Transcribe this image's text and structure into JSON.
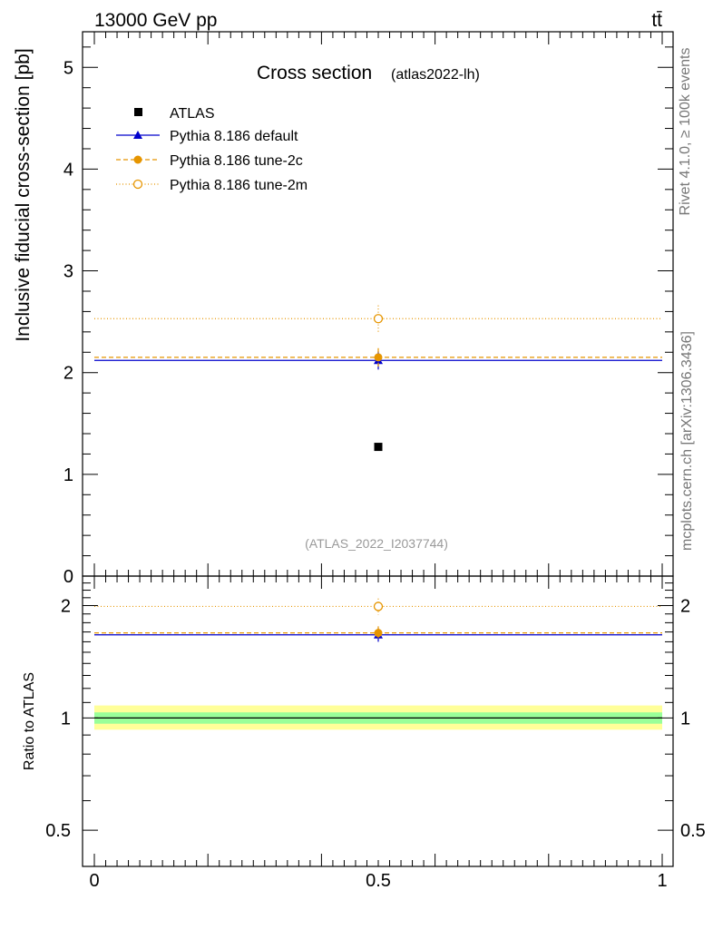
{
  "header": {
    "left_label": "13000 GeV pp",
    "right_label": "tt̄"
  },
  "side_labels": {
    "rivet": "Rivet 4.1.0, ≥ 100k events",
    "mcplots": "mcplots.cern.ch [arXiv:1306.3436]"
  },
  "chart_data": [
    {
      "type": "scatter",
      "panel": "main",
      "title": "Cross section",
      "subtitle": "(atlas2022-lh)",
      "watermark": "(ATLAS_2022_I2037744)",
      "xlabel": "",
      "ylabel": "Inclusive fiducial cross-section [pb]",
      "xlim": [
        0,
        1
      ],
      "ylim": [
        0,
        5.35
      ],
      "x_ticks": [
        "0",
        "0.5",
        "1"
      ],
      "y_ticks": [
        {
          "value": 0,
          "label": "0"
        },
        {
          "value": 1,
          "label": "1"
        },
        {
          "value": 2,
          "label": "2"
        },
        {
          "value": 3,
          "label": "3"
        },
        {
          "value": 4,
          "label": "4"
        },
        {
          "value": 5,
          "label": "5"
        }
      ],
      "legend_position": "top-left",
      "series": [
        {
          "name": "ATLAS",
          "style": "data",
          "color": "#000000",
          "marker": "square",
          "x": 0.5,
          "y": 1.27,
          "err": 0.0
        },
        {
          "name": "Pythia 8.186 default",
          "style": "solid",
          "color": "#0000cc",
          "marker": "triangle",
          "x": 0.5,
          "y": 2.12,
          "err": 0.09
        },
        {
          "name": "Pythia 8.186 tune-2c",
          "style": "dashed",
          "color": "#e69500",
          "marker": "circle",
          "x": 0.5,
          "y": 2.15,
          "err": 0.09
        },
        {
          "name": "Pythia 8.186 tune-2m",
          "style": "dotted",
          "color": "#e69500",
          "marker": "open-circle",
          "x": 0.5,
          "y": 2.53,
          "err": 0.13
        }
      ]
    },
    {
      "type": "scatter",
      "panel": "ratio",
      "ylabel": "Ratio to ATLAS",
      "xlim": [
        0,
        1
      ],
      "ylim": [
        0.4,
        2.4
      ],
      "log_y": true,
      "x_ticks": [
        {
          "value": 0,
          "label": "0"
        },
        {
          "value": 0.5,
          "label": "0.5"
        },
        {
          "value": 1,
          "label": "1"
        }
      ],
      "y_ticks": [
        {
          "value": 0.5,
          "label": "0.5"
        },
        {
          "value": 1,
          "label": "1"
        },
        {
          "value": 2,
          "label": "2"
        }
      ],
      "bands": [
        {
          "name": "stat+syst",
          "lo": 0.93,
          "hi": 1.08,
          "color": "#ffff99"
        },
        {
          "name": "stat",
          "lo": 0.965,
          "hi": 1.035,
          "color": "#99ff99"
        }
      ],
      "series": [
        {
          "name": "Pythia 8.186 default",
          "style": "solid",
          "color": "#0000cc",
          "marker": "triangle",
          "x": 0.5,
          "y": 1.67,
          "err": 0.07
        },
        {
          "name": "Pythia 8.186 tune-2c",
          "style": "dashed",
          "color": "#e69500",
          "marker": "circle",
          "x": 0.5,
          "y": 1.69,
          "err": 0.07
        },
        {
          "name": "Pythia 8.186 tune-2m",
          "style": "dotted",
          "color": "#e69500",
          "marker": "open-circle",
          "x": 0.5,
          "y": 1.99,
          "err": 0.1
        }
      ]
    }
  ]
}
